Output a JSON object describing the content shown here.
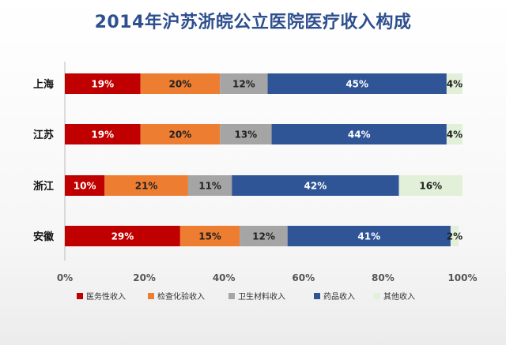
{
  "chart_data": {
    "type": "bar",
    "orientation": "horizontal",
    "stacked": true,
    "title": "2014年沪苏浙皖公立医院医疗收入构成",
    "categories": [
      "上海",
      "江苏",
      "浙江",
      "安徽"
    ],
    "series": [
      {
        "name": "医务性收入",
        "color": "#c00000",
        "values": [
          19,
          19,
          10,
          29
        ],
        "labels": [
          "19%",
          "19%",
          "10%",
          "29%"
        ]
      },
      {
        "name": "检查化验收入",
        "color": "#ed7d31",
        "values": [
          20,
          20,
          21,
          15
        ],
        "labels": [
          "20%",
          "20%",
          "21%",
          "15%"
        ]
      },
      {
        "name": "卫生材料收入",
        "color": "#a5a5a5",
        "values": [
          12,
          13,
          11,
          12
        ],
        "labels": [
          "12%",
          "13%",
          "11%",
          "12%"
        ]
      },
      {
        "name": "药品收入",
        "color": "#2f5597",
        "values": [
          45,
          44,
          42,
          41
        ],
        "labels": [
          "45%",
          "44%",
          "42%",
          "41%"
        ]
      },
      {
        "name": "其他收入",
        "color": "#e2f0d9",
        "values": [
          4,
          4,
          16,
          2
        ],
        "labels": [
          "4%",
          "4%",
          "16%",
          "2%"
        ]
      }
    ],
    "xlim": [
      0,
      100
    ],
    "x_ticks": [
      "0%",
      "20%",
      "40%",
      "60%",
      "80%",
      "100%"
    ],
    "legend_position": "bottom",
    "grid": false
  }
}
